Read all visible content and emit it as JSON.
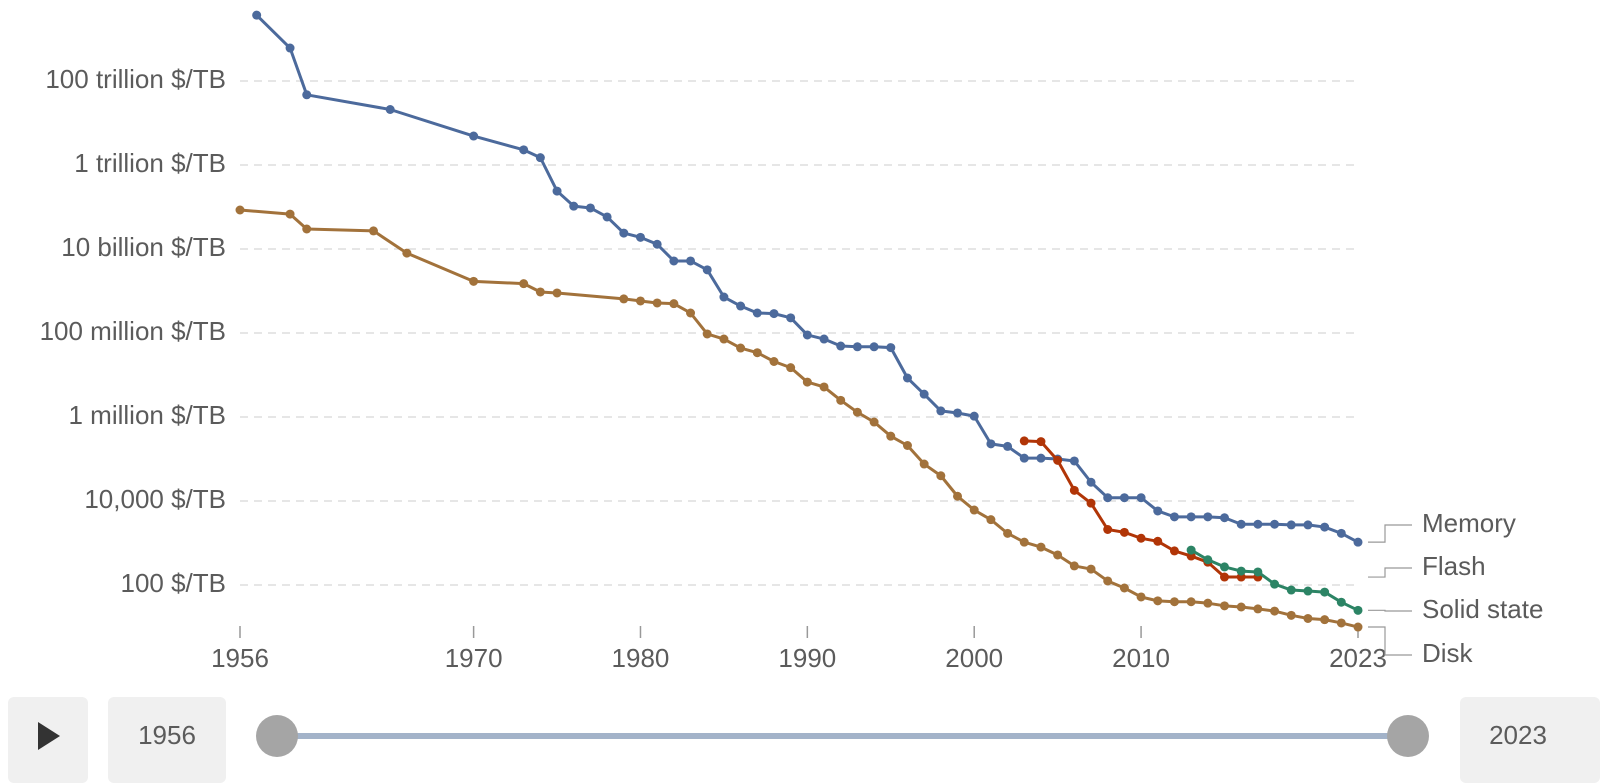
{
  "chart_data": {
    "type": "line",
    "log_y": true,
    "grid": true,
    "xlim": [
      1956,
      2023
    ],
    "xticks": [
      1956,
      1970,
      1980,
      1990,
      2000,
      2010,
      2023
    ],
    "ylim": [
      8.5,
      8500000000000000.0
    ],
    "yticks": [
      {
        "value": 100,
        "label": "100 $/TB"
      },
      {
        "value": 10000,
        "label": "10,000 $/TB"
      },
      {
        "value": 1000000,
        "label": "1 million $/TB"
      },
      {
        "value": 100000000,
        "label": "100 million $/TB"
      },
      {
        "value": 10000000000,
        "label": "10 billion $/TB"
      },
      {
        "value": 1000000000000,
        "label": "1 trillion $/TB"
      },
      {
        "value": 100000000000000,
        "label": "100 trillion $/TB"
      }
    ],
    "series": [
      {
        "name": "Memory",
        "color": "#4c6a9c",
        "x": [
          1957,
          1959,
          1960,
          1965,
          1970,
          1973,
          1974,
          1975,
          1976,
          1977,
          1978,
          1979,
          1980,
          1981,
          1982,
          1983,
          1984,
          1985,
          1986,
          1987,
          1988,
          1989,
          1990,
          1991,
          1992,
          1993,
          1994,
          1995,
          1996,
          1997,
          1998,
          1999,
          2000,
          2001,
          2002,
          2003,
          2004,
          2005,
          2006,
          2007,
          2008,
          2009,
          2010,
          2011,
          2012,
          2013,
          2014,
          2015,
          2016,
          2017,
          2018,
          2019,
          2020,
          2021,
          2022,
          2023
        ],
        "values": [
          3700000000000000.0,
          610000000000000.0,
          47000000000000.0,
          21000000000000.0,
          4900000000000.0,
          2300000000000.0,
          1500000000000.0,
          240000000000.0,
          105000000000.0,
          95000000000.0,
          58000000000.0,
          24000000000.0,
          19000000000.0,
          13000000000.0,
          5200000000.0,
          5200000000.0,
          3200000000.0,
          720000000.0,
          440000000.0,
          300000000.0,
          290000000.0,
          230000000.0,
          90000000.0,
          72000000.0,
          49000000.0,
          47000000.0,
          47000000.0,
          45000000.0,
          8500000.0,
          3500000.0,
          1400000.0,
          1250000.0,
          1050000.0,
          230000,
          200000,
          105000,
          105000,
          100000,
          90000,
          28000,
          12000,
          12000,
          12000,
          5800,
          4200,
          4200,
          4200,
          4000,
          2800,
          2800,
          2800,
          2700,
          2700,
          2400,
          1700,
          1050
        ]
      },
      {
        "name": "Flash",
        "color": "#b13507",
        "x": [
          2003,
          2004,
          2005,
          2006,
          2007,
          2008,
          2009,
          2010,
          2011,
          2012,
          2013,
          2014,
          2015,
          2016,
          2017
        ],
        "values": [
          270000,
          260000,
          93000,
          18000,
          8900,
          2100,
          1800,
          1300,
          1100,
          650,
          490,
          350,
          155,
          155,
          155
        ]
      },
      {
        "name": "Solid state",
        "color": "#2c8465",
        "x": [
          2013,
          2014,
          2015,
          2016,
          2017,
          2018,
          2019,
          2020,
          2021,
          2022,
          2023
        ],
        "values": [
          680,
          400,
          270,
          215,
          205,
          105,
          76,
          72,
          68,
          39,
          25
        ]
      },
      {
        "name": "Disk",
        "color": "#a2723b",
        "x": [
          1956,
          1959,
          1960,
          1964,
          1966,
          1970,
          1973,
          1974,
          1975,
          1979,
          1980,
          1981,
          1982,
          1983,
          1984,
          1985,
          1986,
          1987,
          1988,
          1989,
          1990,
          1991,
          1992,
          1993,
          1994,
          1995,
          1996,
          1997,
          1998,
          1999,
          2000,
          2001,
          2002,
          2003,
          2004,
          2005,
          2006,
          2007,
          2008,
          2009,
          2010,
          2011,
          2012,
          2013,
          2014,
          2015,
          2016,
          2017,
          2018,
          2019,
          2020,
          2021,
          2022,
          2023
        ],
        "values": [
          85000000000.0,
          68000000000.0,
          30000000000.0,
          27000000000.0,
          8000000000.0,
          1700000000.0,
          1500000000.0,
          950000000.0,
          900000000.0,
          650000000.0,
          580000000.0,
          520000000.0,
          500000000.0,
          300000000.0,
          95000000.0,
          72000000.0,
          44000000.0,
          34000000.0,
          21000000.0,
          15000000.0,
          6800000.0,
          5200000.0,
          2500000.0,
          1300000.0,
          760000,
          350000,
          210000,
          76000,
          40000,
          13000,
          6100,
          3600,
          1700,
          1050,
          800,
          520,
          285,
          240,
          125,
          85,
          52,
          42,
          40,
          40,
          37,
          32,
          30,
          27,
          24,
          19,
          16,
          15,
          12.5,
          10
        ]
      }
    ],
    "time_slider": {
      "start": "1956",
      "end": "2023"
    }
  }
}
